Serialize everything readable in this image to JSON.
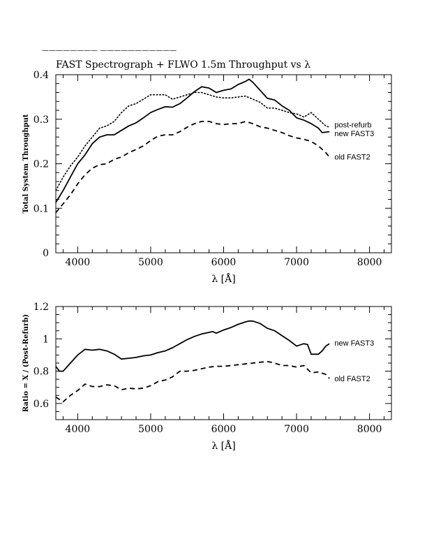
{
  "header": {
    "rule_text": "———————— ———————————",
    "title": "FAST Spectrograph + FLWO 1.5m Throughput vs λ"
  },
  "chart_data": [
    {
      "type": "line",
      "title": "FAST Spectrograph + FLWO 1.5m Throughput vs λ",
      "xlabel": "λ [Å]",
      "ylabel": "Total System Throughput",
      "xlim": [
        3700,
        8300
      ],
      "ylim": [
        0,
        0.4
      ],
      "xticks": [
        4000,
        5000,
        6000,
        7000,
        8000
      ],
      "xtick_labels": [
        "4000",
        "5000",
        "6000",
        "7000",
        "8000"
      ],
      "yticks": [
        0,
        0.1,
        0.2,
        0.3,
        0.4
      ],
      "ytick_labels": [
        "0",
        "0.1",
        "0.2",
        "0.3",
        "0.4"
      ],
      "grid": false,
      "series": [
        {
          "name": "post-refurb",
          "style": "dotted",
          "color": "#000000",
          "x": [
            3700,
            3800,
            3900,
            4000,
            4100,
            4200,
            4300,
            4400,
            4500,
            4600,
            4700,
            4800,
            4900,
            5000,
            5100,
            5200,
            5300,
            5400,
            5500,
            5600,
            5700,
            5800,
            5900,
            6000,
            6100,
            6200,
            6300,
            6400,
            6500,
            6600,
            6700,
            6800,
            6900,
            7000,
            7100,
            7200,
            7300,
            7400,
            7450
          ],
          "y": [
            0.14,
            0.17,
            0.195,
            0.215,
            0.24,
            0.26,
            0.28,
            0.285,
            0.295,
            0.315,
            0.33,
            0.335,
            0.345,
            0.355,
            0.355,
            0.355,
            0.345,
            0.35,
            0.355,
            0.36,
            0.36,
            0.355,
            0.35,
            0.348,
            0.348,
            0.35,
            0.352,
            0.345,
            0.338,
            0.325,
            0.325,
            0.32,
            0.315,
            0.312,
            0.305,
            0.315,
            0.3,
            0.285,
            0.282
          ]
        },
        {
          "name": "new FAST3",
          "style": "solid",
          "color": "#000000",
          "x": [
            3700,
            3800,
            3900,
            4000,
            4100,
            4200,
            4300,
            4400,
            4500,
            4600,
            4700,
            4800,
            4900,
            5000,
            5100,
            5200,
            5300,
            5400,
            5500,
            5600,
            5700,
            5800,
            5900,
            6000,
            6100,
            6200,
            6300,
            6350,
            6400,
            6500,
            6600,
            6700,
            6800,
            6900,
            7000,
            7100,
            7200,
            7300,
            7350,
            7450
          ],
          "y": [
            0.113,
            0.14,
            0.17,
            0.2,
            0.22,
            0.245,
            0.26,
            0.265,
            0.265,
            0.275,
            0.285,
            0.292,
            0.303,
            0.315,
            0.322,
            0.328,
            0.327,
            0.335,
            0.348,
            0.362,
            0.373,
            0.37,
            0.36,
            0.365,
            0.368,
            0.378,
            0.385,
            0.39,
            0.383,
            0.365,
            0.347,
            0.343,
            0.33,
            0.32,
            0.303,
            0.298,
            0.29,
            0.28,
            0.27,
            0.272
          ]
        },
        {
          "name": "old FAST2",
          "style": "dashed",
          "color": "#000000",
          "x": [
            3700,
            3800,
            3900,
            4000,
            4100,
            4200,
            4300,
            4400,
            4500,
            4600,
            4700,
            4800,
            4900,
            5000,
            5100,
            5200,
            5300,
            5400,
            5500,
            5600,
            5700,
            5800,
            5900,
            6000,
            6100,
            6200,
            6300,
            6400,
            6500,
            6600,
            6700,
            6800,
            6900,
            7000,
            7100,
            7200,
            7300,
            7400,
            7450
          ],
          "y": [
            0.09,
            0.11,
            0.13,
            0.155,
            0.175,
            0.19,
            0.198,
            0.2,
            0.21,
            0.215,
            0.225,
            0.232,
            0.24,
            0.252,
            0.262,
            0.265,
            0.265,
            0.272,
            0.282,
            0.29,
            0.295,
            0.295,
            0.29,
            0.288,
            0.29,
            0.29,
            0.295,
            0.29,
            0.283,
            0.28,
            0.275,
            0.27,
            0.263,
            0.258,
            0.255,
            0.25,
            0.24,
            0.225,
            0.215
          ]
        }
      ],
      "annotations": [
        {
          "text": "post-refurb",
          "x": 7500,
          "y": 0.288
        },
        {
          "text": "new FAST3",
          "x": 7500,
          "y": 0.268
        },
        {
          "text": "old FAST2",
          "x": 7500,
          "y": 0.216
        }
      ]
    },
    {
      "type": "line",
      "title": "",
      "xlabel": "λ [Å]",
      "ylabel": "Ratio = X / (Post-Refurb)",
      "xlim": [
        3700,
        8300
      ],
      "ylim": [
        0.5,
        1.2
      ],
      "xticks": [
        4000,
        5000,
        6000,
        7000,
        8000
      ],
      "xtick_labels": [
        "4000",
        "5000",
        "6000",
        "7000",
        "8000"
      ],
      "yticks": [
        0.6,
        0.8,
        1.0,
        1.2
      ],
      "ytick_labels": [
        "0.6",
        "0.8",
        "1",
        "1.2"
      ],
      "grid": false,
      "series": [
        {
          "name": "new FAST3",
          "style": "solid",
          "color": "#000000",
          "x": [
            3700,
            3750,
            3800,
            3900,
            4000,
            4100,
            4200,
            4300,
            4400,
            4500,
            4600,
            4700,
            4800,
            4900,
            5000,
            5100,
            5200,
            5300,
            5400,
            5500,
            5600,
            5700,
            5800,
            5850,
            5900,
            6000,
            6100,
            6200,
            6300,
            6350,
            6400,
            6500,
            6600,
            6700,
            6800,
            6900,
            7000,
            7100,
            7150,
            7200,
            7300,
            7350,
            7400,
            7450
          ],
          "y": [
            0.83,
            0.8,
            0.8,
            0.85,
            0.9,
            0.935,
            0.93,
            0.935,
            0.925,
            0.905,
            0.875,
            0.88,
            0.885,
            0.895,
            0.9,
            0.915,
            0.925,
            0.945,
            0.97,
            0.995,
            1.015,
            1.03,
            1.04,
            1.045,
            1.035,
            1.055,
            1.07,
            1.09,
            1.105,
            1.11,
            1.11,
            1.095,
            1.065,
            1.05,
            1.02,
            0.99,
            0.955,
            0.97,
            0.965,
            0.905,
            0.905,
            0.925,
            0.955,
            0.97
          ]
        },
        {
          "name": "old FAST2",
          "style": "dashed",
          "color": "#000000",
          "x": [
            3700,
            3800,
            3900,
            4000,
            4100,
            4200,
            4300,
            4400,
            4500,
            4600,
            4700,
            4800,
            4900,
            5000,
            5100,
            5200,
            5300,
            5400,
            5500,
            5600,
            5700,
            5800,
            5900,
            6000,
            6100,
            6200,
            6300,
            6400,
            6500,
            6600,
            6700,
            6800,
            6900,
            7000,
            7100,
            7200,
            7300,
            7400,
            7450
          ],
          "y": [
            0.64,
            0.61,
            0.65,
            0.68,
            0.72,
            0.705,
            0.705,
            0.715,
            0.71,
            0.685,
            0.695,
            0.69,
            0.695,
            0.71,
            0.735,
            0.745,
            0.765,
            0.8,
            0.8,
            0.805,
            0.815,
            0.825,
            0.83,
            0.83,
            0.835,
            0.84,
            0.845,
            0.85,
            0.855,
            0.86,
            0.85,
            0.835,
            0.835,
            0.825,
            0.835,
            0.79,
            0.795,
            0.78,
            0.755
          ]
        }
      ],
      "annotations": [
        {
          "text": "new FAST3",
          "x": 7500,
          "y": 0.975
        },
        {
          "text": "old FAST2",
          "x": 7500,
          "y": 0.755
        }
      ]
    }
  ]
}
